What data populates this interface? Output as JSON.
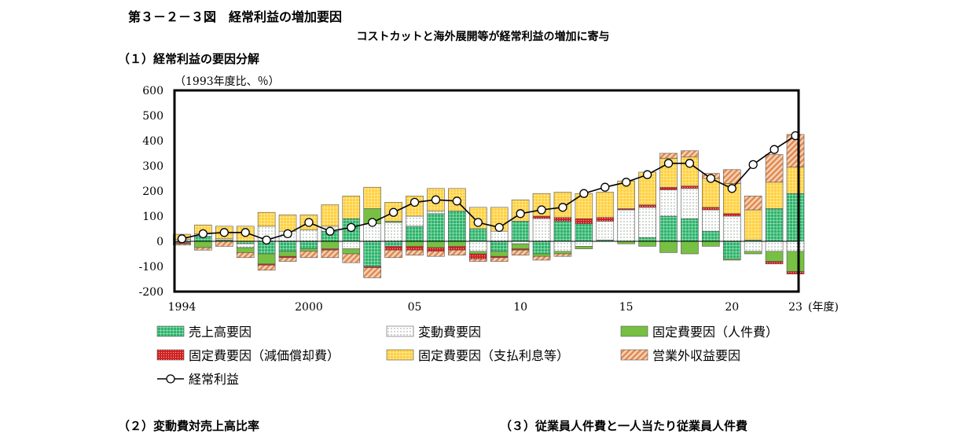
{
  "title": "第３－２－３図　経常利益の増加要因",
  "subtitle": "コストカットと海外展開等が経常利益の増加に寄与",
  "sections": {
    "s1": "（１）経常利益の要因分解",
    "s2": "（２）変動費対売上高比率",
    "s3": "（３）従業員人件費と一人当たり従業員人件費"
  },
  "chart_data": {
    "type": "bar",
    "stacked": true,
    "y_unit_label": "（1993年度比、％）",
    "x_unit_label": "(年度)",
    "ylim": [
      -200,
      600
    ],
    "y_ticks": [
      "600",
      "500",
      "400",
      "300",
      "200",
      "100",
      "0",
      "-100",
      "-200"
    ],
    "y_tick_values": [
      600,
      500,
      400,
      300,
      200,
      100,
      0,
      -100,
      -200
    ],
    "x_tick_labels": [
      {
        "year": 1994,
        "label": "1994"
      },
      {
        "year": 2000,
        "label": "2000"
      },
      {
        "year": 2005,
        "label": "05"
      },
      {
        "year": 2010,
        "label": "10"
      },
      {
        "year": 2015,
        "label": "15"
      },
      {
        "year": 2020,
        "label": "20"
      },
      {
        "year": 2023,
        "label": "23"
      }
    ],
    "x": [
      1994,
      1995,
      1996,
      1997,
      1998,
      1999,
      2000,
      2001,
      2002,
      2003,
      2004,
      2005,
      2006,
      2007,
      2008,
      2009,
      2010,
      2011,
      2012,
      2013,
      2014,
      2015,
      2016,
      2017,
      2018,
      2019,
      2020,
      2021,
      2022,
      2023
    ],
    "series": [
      {
        "name": "売上高要因",
        "color": "#2db36b",
        "pattern": "grid",
        "values": [
          -5,
          20,
          5,
          -10,
          -50,
          -40,
          -30,
          40,
          90,
          -100,
          -20,
          60,
          110,
          120,
          50,
          -40,
          80,
          -50,
          80,
          70,
          5,
          0,
          15,
          100,
          90,
          40,
          -70,
          5,
          130,
          190
        ]
      },
      {
        "name": "変動費要因",
        "color": "#ffffff",
        "pattern": "dots",
        "values": [
          8,
          10,
          5,
          -15,
          60,
          40,
          45,
          20,
          -30,
          70,
          75,
          40,
          10,
          0,
          -40,
          40,
          -10,
          90,
          -40,
          -20,
          75,
          125,
          120,
          105,
          120,
          85,
          100,
          -40,
          -40,
          -40
        ]
      },
      {
        "name": "固定費要因（人件費）",
        "color": "#77c043",
        "pattern": "solid",
        "values": [
          0,
          -25,
          0,
          -20,
          -40,
          -20,
          -10,
          -30,
          -20,
          60,
          5,
          -20,
          -25,
          -20,
          -10,
          -20,
          -20,
          -10,
          -10,
          -10,
          0,
          -10,
          -20,
          -45,
          -50,
          -20,
          -5,
          -10,
          -40,
          -80
        ]
      },
      {
        "name": "固定費要因（減価償却費）",
        "color": "#e03030",
        "pattern": "redgrid",
        "values": [
          -5,
          0,
          0,
          0,
          -5,
          -5,
          0,
          -5,
          0,
          -5,
          -15,
          -15,
          -15,
          -15,
          -20,
          -5,
          -5,
          10,
          15,
          20,
          15,
          5,
          10,
          10,
          10,
          10,
          10,
          0,
          -10,
          -10
        ]
      },
      {
        "name": "固定費要因（支払利息等）",
        "color": "#ffd040",
        "pattern": "yellowgrid",
        "values": [
          20,
          35,
          50,
          60,
          55,
          65,
          60,
          85,
          90,
          85,
          75,
          80,
          90,
          90,
          85,
          95,
          85,
          90,
          100,
          100,
          100,
          110,
          130,
          115,
          115,
          115,
          120,
          120,
          105,
          105
        ]
      },
      {
        "name": "営業外収益要因",
        "color": "#e8a070",
        "pattern": "hatch",
        "values": [
          -5,
          -10,
          -20,
          -20,
          -20,
          -15,
          -25,
          -30,
          -35,
          -40,
          -30,
          -20,
          -20,
          -20,
          -10,
          -15,
          -20,
          -15,
          -10,
          0,
          0,
          0,
          0,
          20,
          25,
          20,
          55,
          55,
          110,
          130
        ]
      }
    ],
    "line": {
      "name": "経常利益",
      "values": [
        10,
        30,
        35,
        35,
        5,
        30,
        75,
        40,
        55,
        75,
        115,
        155,
        165,
        160,
        75,
        55,
        110,
        125,
        135,
        190,
        215,
        235,
        265,
        310,
        310,
        250,
        210,
        305,
        365,
        420
      ]
    }
  }
}
